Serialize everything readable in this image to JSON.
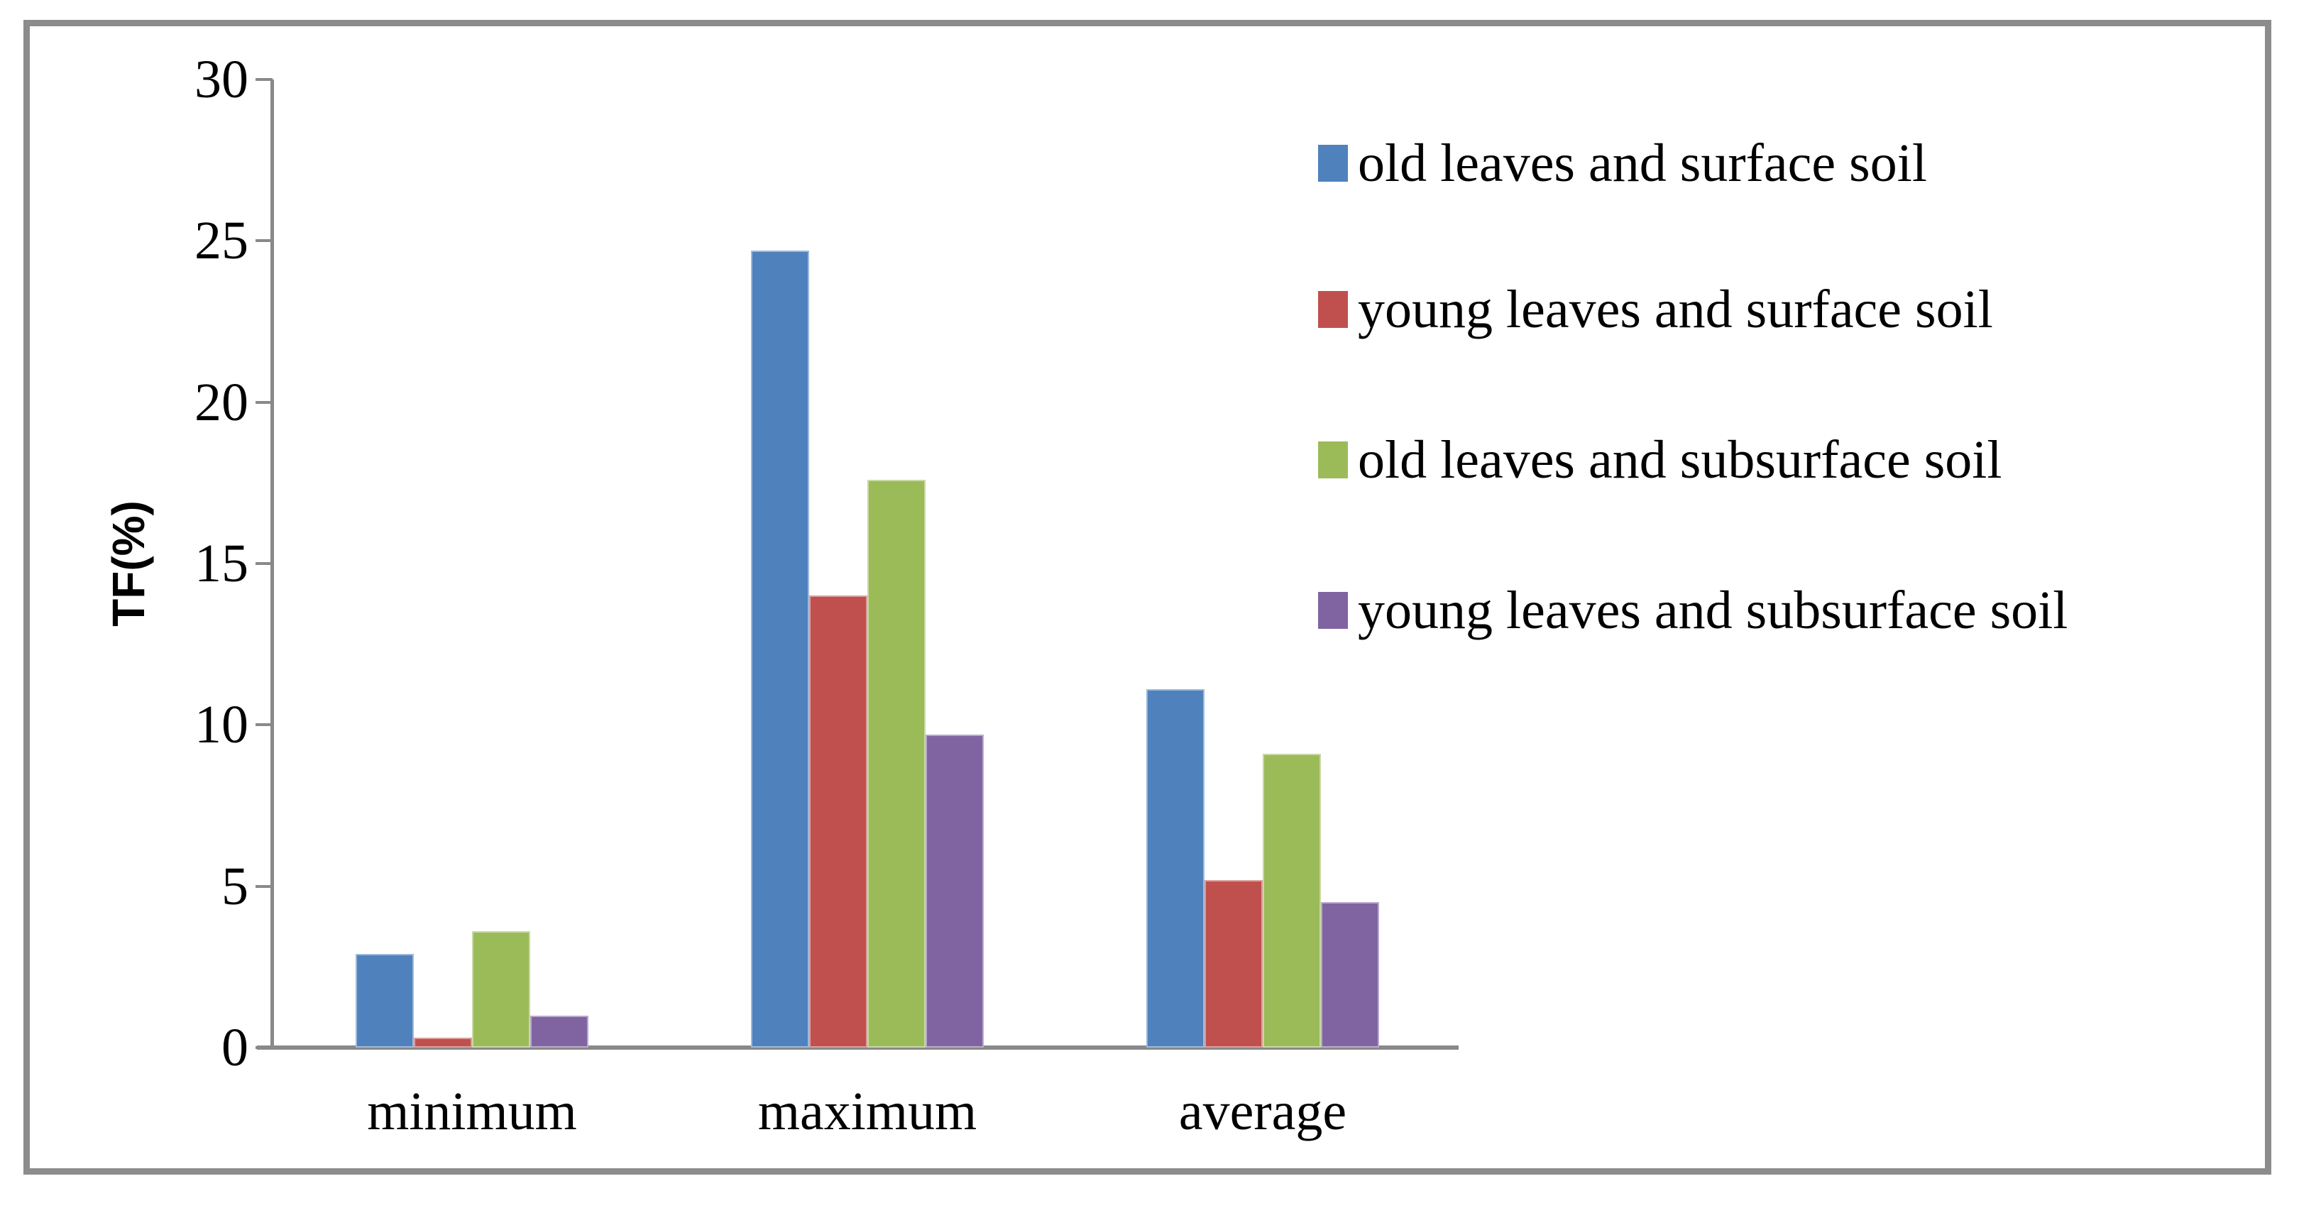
{
  "chart_data": {
    "type": "bar",
    "title": "",
    "xlabel": "",
    "ylabel": "TF(%)",
    "categories": [
      "minimum",
      "maximum",
      "average"
    ],
    "series": [
      {
        "name": "old leaves and surface soil",
        "color": "#4F81BD",
        "values": [
          2.9,
          24.7,
          11.1
        ]
      },
      {
        "name": "young leaves and surface soil",
        "color": "#C0504D",
        "values": [
          0.3,
          14.0,
          5.2
        ]
      },
      {
        "name": "old leaves and subsurface soil",
        "color": "#9BBB59",
        "values": [
          3.6,
          17.6,
          9.1
        ]
      },
      {
        "name": "young leaves and subsurface soil",
        "color": "#8064A2",
        "values": [
          1.0,
          9.7,
          4.5
        ]
      }
    ],
    "ylim": [
      0,
      30
    ],
    "yticks": [
      0,
      5,
      10,
      15,
      20,
      25,
      30
    ],
    "grid": false,
    "legend_position": "right",
    "axis_color": "#898989",
    "frame_color": "#8C8C8C",
    "background": "#FFFFFF"
  }
}
